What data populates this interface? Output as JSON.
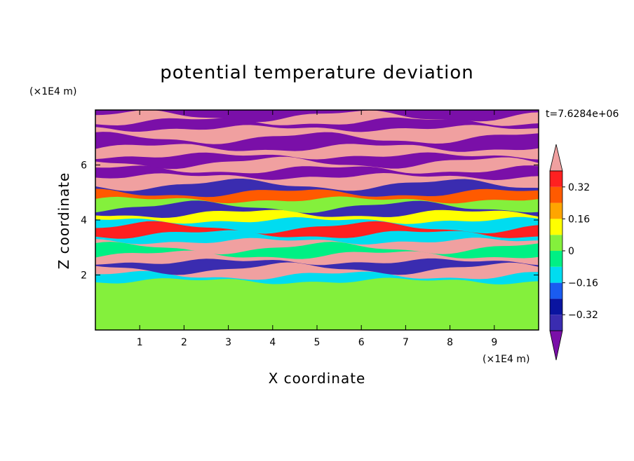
{
  "chart_data": {
    "type": "heatmap",
    "title": "potential temperature deviation",
    "xlabel": "X coordinate",
    "ylabel": "Z coordinate",
    "x_unit": "(×1E4 m)",
    "y_unit": "(×1E4 m)",
    "time_label": "t=7.6284e+06",
    "xlim": [
      0,
      10
    ],
    "ylim": [
      0,
      8
    ],
    "x_ticks": [
      1,
      2,
      3,
      4,
      5,
      6,
      7,
      8,
      9
    ],
    "y_ticks": [
      2,
      4,
      6
    ],
    "colorbar": {
      "levels": [
        -0.48,
        -0.4,
        -0.32,
        -0.24,
        -0.16,
        -0.08,
        0,
        0.08,
        0.16,
        0.24,
        0.32,
        0.4,
        0.48
      ],
      "colors": [
        "#7a0fa8",
        "#3a2cb0",
        "#0a14a0",
        "#1a5cf0",
        "#00dcf0",
        "#00f084",
        "#84f03c",
        "#ffff00",
        "#ffa500",
        "#ff5a00",
        "#ff2020",
        "#f0a0a0"
      ],
      "tick_labels": [
        "0.32",
        "0.16",
        "0",
        "−0.16",
        "−0.32"
      ],
      "tick_values": [
        0.32,
        0.16,
        0,
        -0.16,
        -0.32
      ],
      "extend": "both"
    },
    "bands": [
      {
        "z": 7.9,
        "value": -0.5
      },
      {
        "z": 7.7,
        "value": 0.5
      },
      {
        "z": 7.45,
        "value": -0.5
      },
      {
        "z": 7.1,
        "value": 0.5
      },
      {
        "z": 6.75,
        "value": -0.5
      },
      {
        "z": 6.45,
        "value": 0.5
      },
      {
        "z": 6.2,
        "value": -0.5
      },
      {
        "z": 5.95,
        "value": 0.5
      },
      {
        "z": 5.7,
        "value": -0.5
      },
      {
        "z": 5.4,
        "value": 0.5
      },
      {
        "z": 5.1,
        "value": -0.4
      },
      {
        "z": 4.85,
        "value": 0.3
      },
      {
        "z": 4.6,
        "value": 0.05
      },
      {
        "z": 4.35,
        "value": -0.4
      },
      {
        "z": 4.1,
        "value": 0.1
      },
      {
        "z": 3.85,
        "value": -0.15
      },
      {
        "z": 3.6,
        "value": 0.35
      },
      {
        "z": 3.35,
        "value": -0.1
      },
      {
        "z": 3.1,
        "value": 0.4
      },
      {
        "z": 2.85,
        "value": -0.05
      },
      {
        "z": 2.6,
        "value": 0.45
      },
      {
        "z": 2.35,
        "value": -0.35
      },
      {
        "z": 2.1,
        "value": 0.45
      },
      {
        "z": 1.9,
        "value": -0.15
      },
      {
        "z": 1.4,
        "value": 0.02
      },
      {
        "z": 0.8,
        "value": 0.02
      },
      {
        "z": 0.2,
        "value": 0.02
      }
    ]
  }
}
